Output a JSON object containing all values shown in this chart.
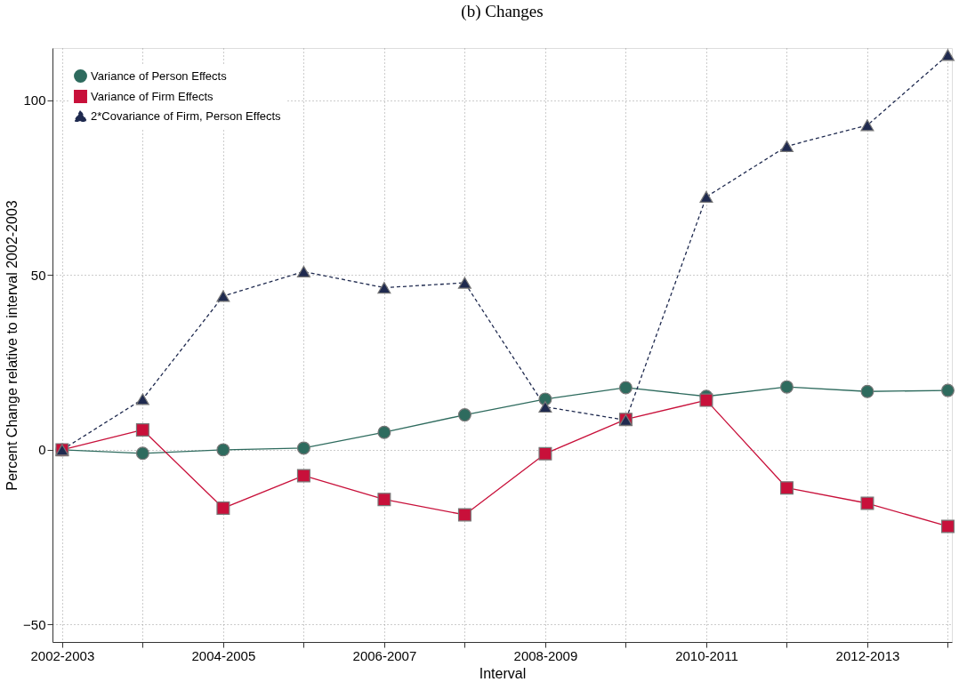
{
  "chart_data": {
    "type": "line",
    "title": "(b) Changes",
    "xlabel": "Interval",
    "ylabel": "Percent Change relative to interval 2002-2003",
    "categories": [
      "2002-2003",
      null,
      "2004-2005",
      null,
      "2006-2007",
      null,
      "2008-2009",
      null,
      "2010-2011",
      null,
      "2012-2013",
      null
    ],
    "series": [
      {
        "name": "Variance of Person Effects",
        "color": "#2e6b5e",
        "marker": "circle",
        "line_style": "solid",
        "values": [
          0,
          -1,
          0,
          0.5,
          5,
          10,
          14.5,
          17.8,
          15.3,
          18,
          16.7,
          17
        ]
      },
      {
        "name": "Variance of Firm Effects",
        "color": "#c8103a",
        "marker": "square",
        "line_style": "solid",
        "values": [
          0,
          5.7,
          -16.7,
          -7.4,
          -14.2,
          -18.6,
          -1.1,
          8.7,
          14.2,
          -10.9,
          -15.3,
          -21.9
        ]
      },
      {
        "name": "2*Covariance of Firm, Person Effects",
        "color": "#1f2a4f",
        "marker": "triangle",
        "line_style": "dashed",
        "values": [
          0,
          14.5,
          44,
          51,
          46.4,
          47.8,
          12.3,
          8.5,
          72.4,
          86.9,
          92.9,
          113
        ]
      }
    ],
    "ylim": [
      -55,
      115
    ],
    "yticks": [
      -50,
      0,
      50,
      100
    ],
    "grid": true,
    "legend": "top left"
  }
}
